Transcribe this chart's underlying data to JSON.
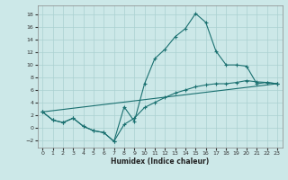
{
  "xlabel": "Humidex (Indice chaleur)",
  "xlim": [
    -0.5,
    23.5
  ],
  "ylim": [
    -3.2,
    19.5
  ],
  "xticks": [
    0,
    1,
    2,
    3,
    4,
    5,
    6,
    7,
    8,
    9,
    10,
    11,
    12,
    13,
    14,
    15,
    16,
    17,
    18,
    19,
    20,
    21,
    22,
    23
  ],
  "yticks": [
    -2,
    0,
    2,
    4,
    6,
    8,
    10,
    12,
    14,
    16,
    18
  ],
  "bg_color": "#cce8e8",
  "grid_color": "#aad0d0",
  "line_color": "#1a7070",
  "line1_x": [
    0,
    1,
    2,
    3,
    4,
    5,
    6,
    7,
    8,
    9,
    10,
    11,
    12,
    13,
    14,
    15,
    16,
    17,
    18,
    19,
    20,
    21,
    22,
    23
  ],
  "line1_y": [
    2.5,
    1.2,
    0.8,
    1.5,
    0.2,
    -0.5,
    -0.8,
    -2.2,
    3.3,
    1.0,
    7.0,
    11.0,
    12.5,
    14.5,
    15.8,
    18.2,
    16.8,
    12.2,
    10.0,
    10.0,
    9.8,
    7.0,
    7.2,
    7.0
  ],
  "line2_x": [
    0,
    23
  ],
  "line2_y": [
    2.5,
    7.0
  ],
  "line3_x": [
    0,
    1,
    2,
    3,
    4,
    5,
    6,
    7,
    8,
    9,
    10,
    11,
    12,
    13,
    14,
    15,
    16,
    17,
    18,
    19,
    20,
    21,
    22,
    23
  ],
  "line3_y": [
    2.5,
    1.2,
    0.8,
    1.5,
    0.2,
    -0.5,
    -0.8,
    -2.2,
    0.5,
    1.5,
    3.2,
    4.0,
    4.8,
    5.5,
    6.0,
    6.5,
    6.8,
    7.0,
    7.0,
    7.2,
    7.5,
    7.3,
    7.2,
    7.0
  ]
}
